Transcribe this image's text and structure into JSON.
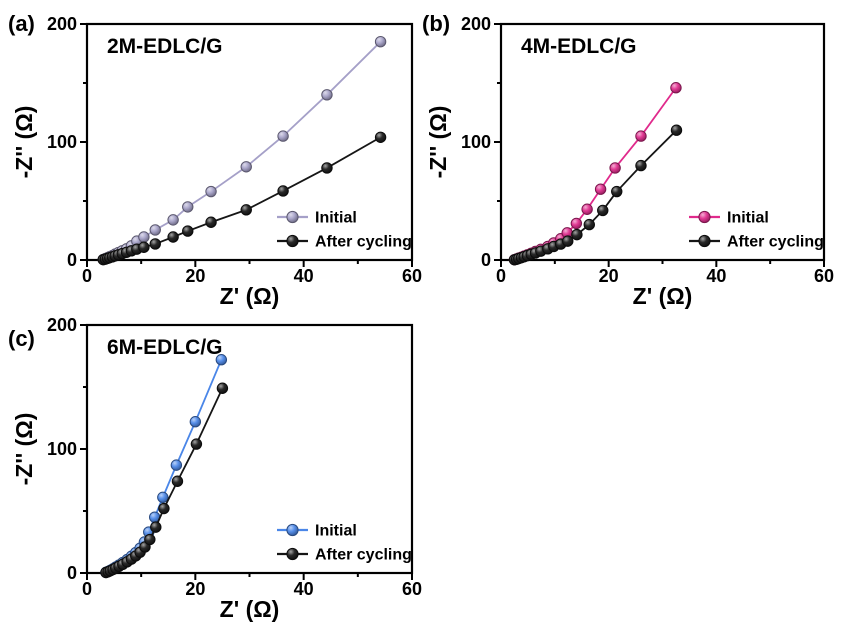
{
  "figure": {
    "background": "#ffffff",
    "axis_color": "#000000",
    "description_labels": {
      "x_axis_label": "Z' (Ω)",
      "y_axis_label": "-Z'' (Ω)"
    },
    "legend": {
      "position": "lower right",
      "items": [
        "Initial",
        "After cycling"
      ]
    }
  },
  "chart_data": [
    {
      "type": "line",
      "panel_label": "(a)",
      "title": "2M-EDLC/G",
      "xlabel": "Z' (Ω)",
      "ylabel": "-Z'' (Ω)",
      "xlim": [
        0,
        60
      ],
      "ylim": [
        0,
        200
      ],
      "x_major_ticks": [
        0,
        20,
        40,
        60
      ],
      "x_minor_ticks": [
        10,
        30,
        50
      ],
      "y_major_ticks": [
        0,
        100,
        200
      ],
      "y_minor_ticks": [
        50,
        150
      ],
      "grid": false,
      "legend_position": "lower right",
      "series": [
        {
          "name": "Initial",
          "color": "#a5a0c8",
          "x": [
            3.0,
            3.4,
            3.8,
            4.2,
            4.7,
            5.2,
            5.8,
            6.5,
            7.3,
            8.2,
            9.2,
            10.5,
            12.6,
            15.9,
            18.6,
            22.9,
            29.4,
            36.2,
            44.3,
            54.2
          ],
          "y": [
            0.5,
            1.2,
            2.0,
            2.8,
            3.8,
            5.0,
            6.3,
            7.8,
            9.5,
            12.0,
            16.0,
            19.5,
            25.5,
            34.0,
            45.0,
            58.0,
            79.0,
            105.0,
            140.0,
            185.0
          ]
        },
        {
          "name": "After cycling",
          "color": "#161616",
          "x": [
            3.0,
            3.4,
            3.8,
            4.2,
            4.7,
            5.2,
            5.8,
            6.5,
            7.3,
            8.2,
            9.2,
            10.5,
            12.6,
            15.9,
            18.6,
            22.9,
            29.4,
            36.2,
            44.3,
            54.2
          ],
          "y": [
            0.3,
            0.8,
            1.4,
            2.0,
            2.7,
            3.5,
            4.4,
            5.4,
            6.5,
            7.8,
            9.2,
            10.8,
            13.6,
            19.5,
            24.5,
            32.0,
            42.5,
            58.5,
            78.0,
            104.0
          ]
        }
      ]
    },
    {
      "type": "line",
      "panel_label": "(b)",
      "title": "4M-EDLC/G",
      "xlabel": "Z' (Ω)",
      "ylabel": "-Z'' (Ω)",
      "xlim": [
        0,
        60
      ],
      "ylim": [
        0,
        200
      ],
      "x_major_ticks": [
        0,
        20,
        40,
        60
      ],
      "x_minor_ticks": [
        10,
        30,
        50
      ],
      "y_major_ticks": [
        0,
        100,
        200
      ],
      "y_minor_ticks": [
        50,
        150
      ],
      "grid": false,
      "legend_position": "lower right",
      "series": [
        {
          "name": "Initial",
          "color": "#e02a8c",
          "x": [
            2.5,
            2.9,
            3.3,
            3.8,
            4.3,
            4.9,
            5.6,
            6.4,
            7.4,
            8.7,
            9.8,
            11.1,
            12.3,
            14.0,
            16.0,
            18.5,
            21.2,
            26.0,
            32.5
          ],
          "y": [
            0.3,
            0.9,
            1.6,
            2.4,
            3.3,
            4.4,
            5.7,
            7.2,
            9.0,
            11.5,
            14.5,
            18.0,
            23.0,
            31.0,
            43.0,
            60.0,
            78.0,
            105.0,
            146.0
          ]
        },
        {
          "name": "After cycling",
          "color": "#161616",
          "x": [
            2.5,
            2.9,
            3.3,
            3.8,
            4.3,
            4.9,
            5.6,
            6.4,
            7.4,
            8.7,
            9.8,
            11.1,
            12.4,
            14.1,
            16.4,
            18.9,
            21.5,
            26.0,
            32.6
          ],
          "y": [
            0.2,
            0.7,
            1.3,
            2.0,
            2.8,
            3.7,
            4.8,
            6.0,
            7.5,
            9.5,
            11.5,
            13.5,
            16.0,
            21.5,
            30.0,
            42.0,
            58.0,
            80.0,
            110.0
          ]
        }
      ]
    },
    {
      "type": "line",
      "panel_label": "(c)",
      "title": "6M-EDLC/G",
      "xlabel": "Z' (Ω)",
      "ylabel": "-Z'' (Ω)",
      "xlim": [
        0,
        60
      ],
      "ylim": [
        0,
        200
      ],
      "x_major_ticks": [
        0,
        20,
        40,
        60
      ],
      "x_minor_ticks": [
        10,
        30,
        50
      ],
      "y_major_ticks": [
        0,
        100,
        200
      ],
      "y_minor_ticks": [
        50,
        150
      ],
      "grid": false,
      "legend_position": "lower right",
      "series": [
        {
          "name": "Initial",
          "color": "#4a86e8",
          "x": [
            3.5,
            3.9,
            4.3,
            4.8,
            5.3,
            5.9,
            6.6,
            7.4,
            8.2,
            9.0,
            9.8,
            10.6,
            11.4,
            12.5,
            14.0,
            16.5,
            20.0,
            24.8
          ],
          "y": [
            0.5,
            1.2,
            2.2,
            3.4,
            4.8,
            6.4,
            8.4,
            10.8,
            13.5,
            16.5,
            20.0,
            25.0,
            33.0,
            45.0,
            61.0,
            87.0,
            122.0,
            172.0
          ]
        },
        {
          "name": "After cycling",
          "color": "#161616",
          "x": [
            3.5,
            3.9,
            4.3,
            4.8,
            5.3,
            5.9,
            6.6,
            7.4,
            8.2,
            9.0,
            9.8,
            10.7,
            11.6,
            12.7,
            14.2,
            16.7,
            20.2,
            25.0
          ],
          "y": [
            0.4,
            1.0,
            1.8,
            2.8,
            4.0,
            5.4,
            7.0,
            9.0,
            11.2,
            13.8,
            16.8,
            21.0,
            27.0,
            37.0,
            52.0,
            74.0,
            104.0,
            149.0
          ]
        }
      ]
    }
  ]
}
